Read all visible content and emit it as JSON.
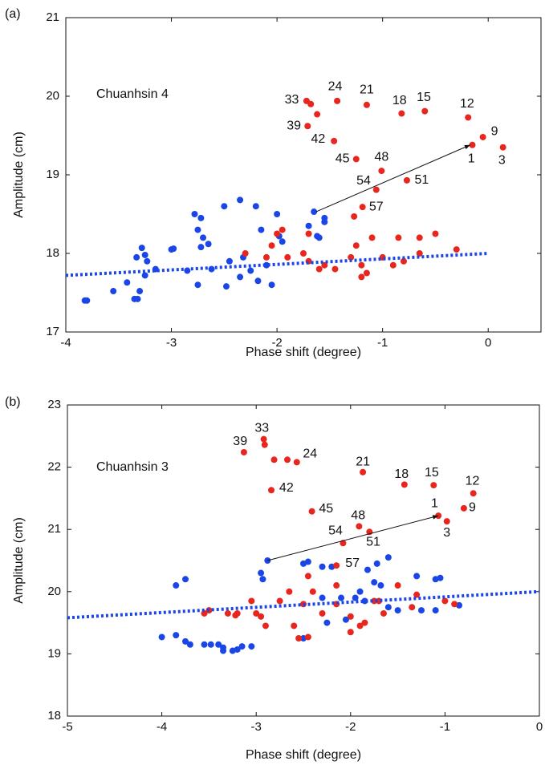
{
  "chart_data": [
    {
      "type": "scatter",
      "panel": "(a)",
      "inset_title": "Chuanhsin 4",
      "x_label": "Phase shift (degree)",
      "y_label": "Amplitude (cm)",
      "xlim": [
        -4,
        0.5
      ],
      "ylim": [
        17,
        21
      ],
      "xticks": [
        -4,
        -3,
        -2,
        -1,
        0
      ],
      "yticks": [
        17,
        18,
        19,
        20,
        21
      ],
      "grid": false,
      "series": [
        {
          "color": "#1a46e8",
          "x": [
            -3.82,
            -3.8,
            -3.55,
            -3.42,
            -3.35,
            -3.32,
            -3.33,
            -3.3,
            -3.28,
            -3.25,
            -3.23,
            -3.25,
            -3.15,
            -3.0,
            -2.98,
            -2.85,
            -2.78,
            -2.72,
            -2.75,
            -2.7,
            -2.72,
            -2.65,
            -2.75,
            -2.62,
            -2.5,
            -2.45,
            -2.48,
            -2.35,
            -2.32,
            -2.35,
            -2.25,
            -2.2,
            -2.18,
            -2.15,
            -2.1,
            -2.05,
            -2.0,
            -1.98,
            -1.95,
            -1.7,
            -1.65,
            -1.6,
            -1.55,
            -1.55,
            -1.62
          ],
          "y": [
            17.4,
            17.4,
            17.52,
            17.63,
            17.42,
            17.42,
            17.95,
            17.52,
            18.07,
            17.98,
            17.9,
            17.72,
            17.8,
            18.05,
            18.06,
            17.78,
            18.5,
            18.45,
            18.3,
            18.2,
            18.08,
            18.12,
            17.6,
            17.8,
            18.6,
            17.9,
            17.58,
            18.68,
            17.95,
            17.7,
            17.78,
            18.6,
            17.65,
            18.3,
            17.85,
            17.6,
            18.5,
            18.22,
            18.15,
            18.35,
            18.53,
            18.2,
            18.45,
            18.4,
            18.22
          ]
        },
        {
          "color": "#e8261e",
          "x": [
            -1.72,
            -1.68,
            -1.43,
            -1.15,
            -0.82,
            -0.6,
            -0.19,
            -0.05,
            0.14,
            -0.15,
            -1.71,
            -1.62,
            -1.46,
            -1.25,
            -1.01,
            -1.06,
            -0.77,
            -1.19,
            -1.27,
            -2.3,
            -2.1,
            -2.0,
            -1.95,
            -1.9,
            -2.05,
            -1.75,
            -1.7,
            -1.6,
            -1.45,
            -1.3,
            -1.25,
            -1.2,
            -1.15,
            -1.1,
            -1.0,
            -0.85,
            -0.8,
            -0.65,
            -0.65,
            -0.5,
            -0.3,
            -0.9,
            -1.2,
            -1.55,
            -1.7
          ],
          "y": [
            19.94,
            19.9,
            19.94,
            19.89,
            19.78,
            19.81,
            19.73,
            19.48,
            19.35,
            19.38,
            19.62,
            19.77,
            19.43,
            19.2,
            19.05,
            18.81,
            18.93,
            18.59,
            18.47,
            18.0,
            17.95,
            18.25,
            18.3,
            17.95,
            18.1,
            18.0,
            18.25,
            17.8,
            17.8,
            17.95,
            18.1,
            17.85,
            17.75,
            18.2,
            17.95,
            18.2,
            17.9,
            18.2,
            18.0,
            18.25,
            18.05,
            17.85,
            17.7,
            17.85,
            17.9
          ]
        }
      ],
      "trend": {
        "color": "#1a46e8",
        "x": [
          -4,
          0
        ],
        "y": [
          17.72,
          18.0
        ]
      },
      "arrow": {
        "x": [
          -1.63,
          -0.17
        ],
        "y": [
          18.53,
          19.38
        ]
      },
      "point_labels": [
        {
          "text": "33",
          "x": -1.86,
          "y": 19.95
        },
        {
          "text": "24",
          "x": -1.45,
          "y": 20.12
        },
        {
          "text": "21",
          "x": -1.15,
          "y": 20.08
        },
        {
          "text": "18",
          "x": -0.84,
          "y": 19.94
        },
        {
          "text": "15",
          "x": -0.61,
          "y": 19.98
        },
        {
          "text": "12",
          "x": -0.2,
          "y": 19.9
        },
        {
          "text": "9",
          "x": 0.06,
          "y": 19.55
        },
        {
          "text": "3",
          "x": 0.13,
          "y": 19.18
        },
        {
          "text": "1",
          "x": -0.16,
          "y": 19.2
        },
        {
          "text": "39",
          "x": -1.84,
          "y": 19.62
        },
        {
          "text": "42",
          "x": -1.61,
          "y": 19.45
        },
        {
          "text": "45",
          "x": -1.38,
          "y": 19.2
        },
        {
          "text": "48",
          "x": -1.01,
          "y": 19.22
        },
        {
          "text": "54",
          "x": -1.18,
          "y": 18.92
        },
        {
          "text": "51",
          "x": -0.63,
          "y": 18.93
        },
        {
          "text": "57",
          "x": -1.06,
          "y": 18.59
        }
      ]
    },
    {
      "type": "scatter",
      "panel": "(b)",
      "inset_title": "Chuanhsin 3",
      "x_label": "Phase shift (degree)",
      "y_label": "Amplitude (cm)",
      "xlim": [
        -5,
        0
      ],
      "ylim": [
        18,
        23
      ],
      "xticks": [
        -5,
        -4,
        -3,
        -2,
        -1,
        0
      ],
      "yticks": [
        18,
        19,
        20,
        21,
        22,
        23
      ],
      "grid": false,
      "series": [
        {
          "color": "#1a46e8",
          "x": [
            -4.0,
            -3.85,
            -3.85,
            -3.75,
            -3.75,
            -3.7,
            -3.55,
            -3.48,
            -3.4,
            -3.35,
            -3.35,
            -3.25,
            -3.2,
            -3.15,
            -3.05,
            -2.95,
            -2.93,
            -2.88,
            -2.5,
            -2.5,
            -2.45,
            -2.3,
            -2.25,
            -2.3,
            -2.2,
            -2.1,
            -2.05,
            -1.95,
            -1.9,
            -1.85,
            -1.82,
            -1.75,
            -1.72,
            -1.68,
            -1.6,
            -1.6,
            -1.5,
            -1.3,
            -1.25,
            -1.1,
            -1.05,
            -1.1,
            -0.85
          ],
          "y": [
            19.27,
            19.3,
            20.1,
            20.2,
            19.2,
            19.15,
            19.15,
            19.15,
            19.15,
            19.1,
            19.05,
            19.05,
            19.07,
            19.12,
            19.12,
            20.3,
            20.2,
            20.5,
            20.45,
            19.25,
            20.48,
            20.4,
            19.5,
            19.9,
            20.4,
            19.9,
            19.55,
            19.9,
            20.0,
            19.85,
            20.35,
            20.15,
            20.45,
            20.1,
            20.55,
            19.75,
            19.7,
            20.25,
            19.7,
            20.2,
            20.22,
            19.7,
            19.78
          ]
        },
        {
          "color": "#e8261e",
          "x": [
            -3.13,
            -2.92,
            -2.91,
            -2.81,
            -2.67,
            -2.57,
            -1.87,
            -1.43,
            -1.12,
            -0.7,
            -0.8,
            -0.98,
            -1.07,
            -2.84,
            -2.41,
            -1.91,
            -2.08,
            -1.8,
            -2.15,
            -3.55,
            -3.5,
            -3.3,
            -3.22,
            -3.2,
            -3.05,
            -3.0,
            -2.95,
            -2.9,
            -2.75,
            -2.65,
            -2.6,
            -2.55,
            -2.5,
            -2.45,
            -2.45,
            -2.4,
            -2.3,
            -2.15,
            -2.15,
            -2.0,
            -2.0,
            -1.9,
            -1.85,
            -1.75,
            -1.7,
            -1.65,
            -1.5,
            -1.35,
            -1.3,
            -1.0,
            -0.9
          ],
          "y": [
            22.24,
            22.45,
            22.36,
            22.12,
            22.12,
            22.08,
            21.92,
            21.72,
            21.71,
            21.58,
            21.34,
            21.13,
            21.22,
            21.63,
            21.29,
            21.05,
            20.78,
            20.96,
            20.42,
            19.65,
            19.7,
            19.65,
            19.62,
            19.65,
            19.85,
            19.65,
            19.6,
            19.45,
            19.85,
            20.0,
            19.45,
            19.25,
            19.8,
            19.27,
            20.25,
            20.0,
            19.65,
            20.1,
            19.8,
            19.6,
            19.35,
            19.45,
            19.5,
            19.85,
            19.85,
            19.65,
            20.1,
            19.75,
            19.95,
            19.85,
            19.8
          ]
        }
      ],
      "trend": {
        "color": "#1a46e8",
        "x": [
          -5,
          0
        ],
        "y": [
          19.58,
          20.0
        ]
      },
      "arrow": {
        "x": [
          -2.88,
          -1.07
        ],
        "y": [
          20.5,
          21.22
        ]
      },
      "point_labels": [
        {
          "text": "39",
          "x": -3.17,
          "y": 22.41
        },
        {
          "text": "33",
          "x": -2.94,
          "y": 22.62
        },
        {
          "text": "24",
          "x": -2.43,
          "y": 22.21
        },
        {
          "text": "21",
          "x": -1.87,
          "y": 22.08
        },
        {
          "text": "18",
          "x": -1.46,
          "y": 21.88
        },
        {
          "text": "15",
          "x": -1.14,
          "y": 21.91
        },
        {
          "text": "12",
          "x": -0.71,
          "y": 21.77
        },
        {
          "text": "9",
          "x": -0.71,
          "y": 21.35
        },
        {
          "text": "3",
          "x": -0.98,
          "y": 20.94
        },
        {
          "text": "1",
          "x": -1.11,
          "y": 21.41
        },
        {
          "text": "42",
          "x": -2.68,
          "y": 21.66
        },
        {
          "text": "45",
          "x": -2.26,
          "y": 21.33
        },
        {
          "text": "48",
          "x": -1.92,
          "y": 21.22
        },
        {
          "text": "54",
          "x": -2.16,
          "y": 20.97
        },
        {
          "text": "51",
          "x": -1.76,
          "y": 20.79
        },
        {
          "text": "57",
          "x": -1.98,
          "y": 20.45
        }
      ]
    }
  ]
}
